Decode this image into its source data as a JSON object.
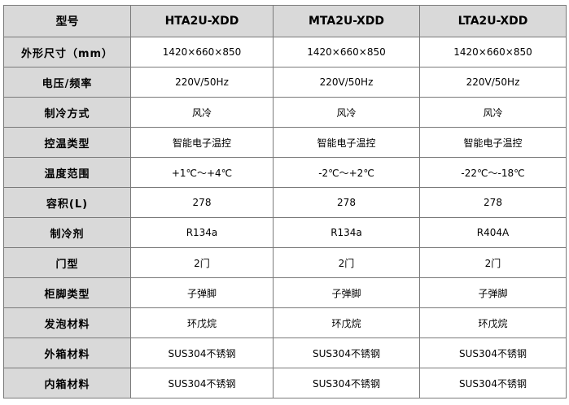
{
  "table": {
    "header": [
      "型号",
      "HTA2U-XDD",
      "MTA2U-XDD",
      "LTA2U-XDD"
    ],
    "rows": [
      {
        "label": "外形尺寸（mm）",
        "values": [
          "1420×660×850",
          "1420×660×850",
          "1420×660×850"
        ]
      },
      {
        "label": "电压/频率",
        "values": [
          "220V/50Hz",
          "220V/50Hz",
          "220V/50Hz"
        ]
      },
      {
        "label": "制冷方式",
        "values": [
          "风冷",
          "风冷",
          "风冷"
        ]
      },
      {
        "label": "控温类型",
        "values": [
          "智能电子温控",
          "智能电子温控",
          "智能电子温控"
        ]
      },
      {
        "label": "温度范围",
        "values": [
          "+1℃～+4℃",
          "-2℃～+2℃",
          "-22℃～-18℃"
        ]
      },
      {
        "label": "容积(L)",
        "values": [
          "278",
          "278",
          "278"
        ]
      },
      {
        "label": "制冷剂",
        "values": [
          "R134a",
          "R134a",
          "R404A"
        ]
      },
      {
        "label": "门型",
        "values": [
          "2门",
          "2门",
          "2门"
        ]
      },
      {
        "label": "柜脚类型",
        "values": [
          "子弹脚",
          "子弹脚",
          "子弹脚"
        ]
      },
      {
        "label": "发泡材料",
        "values": [
          "环戊烷",
          "环戊烷",
          "环戊烷"
        ]
      },
      {
        "label": "外箱材料",
        "values": [
          "SUS304不锈钢",
          "SUS304不锈钢",
          "SUS304不锈钢"
        ]
      },
      {
        "label": "内箱材料",
        "values": [
          "SUS304不锈钢",
          "SUS304不锈钢",
          "SUS304不锈钢"
        ]
      }
    ]
  },
  "colors": {
    "header_bg": "#d9d9d9",
    "label_bg": "#d9d9d9",
    "border": "#7a7a7a",
    "cell_bg": "#ffffff"
  }
}
